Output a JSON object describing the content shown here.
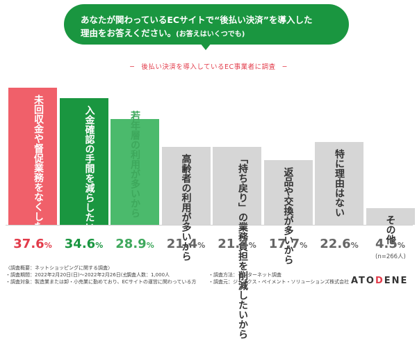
{
  "question": {
    "line1": "あなたが関わっているECサイトで“後払い決済”を導入した",
    "line2": "理由をお答えください。",
    "note": "(お答えはいくつでも)"
  },
  "subtitle": "─　後払い決済を導入しているEC事業者に調査　─",
  "chart_data": {
    "type": "bar",
    "categories": [
      "未回収金や督促業務をなくしたいから",
      "入金確認の手間を減らしたいから",
      "若年層の利用が多いから",
      "高齢者の利用が多いから",
      "「持ち戻り」の業務負担を削減したいから",
      "返品や交換が多いから",
      "特に理由はない",
      "その他"
    ],
    "values": [
      37.6,
      34.6,
      28.9,
      21.4,
      21.4,
      17.7,
      22.6,
      4.5
    ],
    "value_labels": [
      "37.6",
      "34.6",
      "28.9",
      "21.4",
      "21.4",
      "17.7",
      "22.6",
      "4.5"
    ],
    "unit": "%",
    "ylim": [
      0,
      40
    ],
    "colors": [
      "#f0606a",
      "#1a9640",
      "#4bba6c",
      "#d6d6d6",
      "#d6d6d6",
      "#d6d6d6",
      "#d6d6d6",
      "#d6d6d6"
    ],
    "value_colors": [
      "#e23b4a",
      "#1a9640",
      "#3ea85c",
      "#666666",
      "#666666",
      "#666666",
      "#666666",
      "#666666"
    ],
    "label_styles": [
      "wht",
      "wht",
      "grn",
      "drk",
      "drk",
      "drk",
      "drk",
      "drk"
    ],
    "sample_note": "(n=266人)"
  },
  "footer": {
    "header": "〈調査概要：ネットショッピングに関する調査〉",
    "period": "・調査期間：2022年2月20日(日)〜2022年2月26日(土)",
    "count": "・調査人数：1,000人",
    "target": "・調査対象：製造業または卸・小売業に勤めており、ECサイトの運営に関わっている方",
    "method": "・調査方法：インターネット調査",
    "source": "・調査元：ジャックス・ペイメント・ソリューションズ株式会社"
  },
  "logo": {
    "part1": "ATO",
    "part2": "D",
    "part3": "ENE"
  }
}
